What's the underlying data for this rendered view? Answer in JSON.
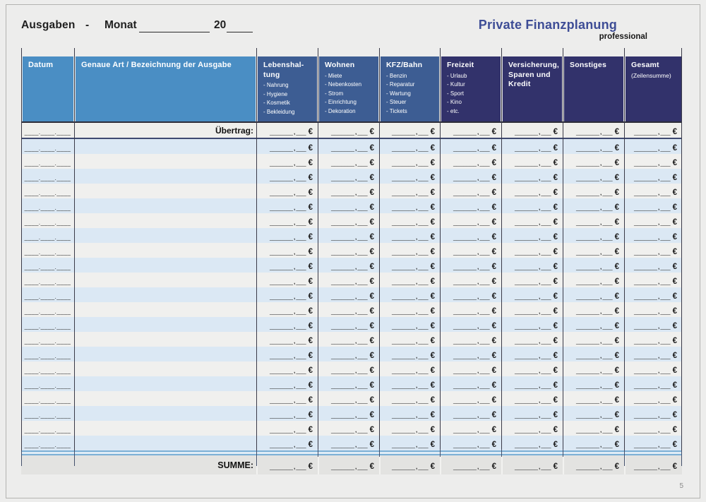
{
  "header": {
    "title": "Ausgaben",
    "separator": "-",
    "month_label": "Monat",
    "year_prefix": "20",
    "brand_title": "Private Finanzplanung",
    "brand_subtitle": "professional"
  },
  "table": {
    "columns": [
      {
        "id": "datum",
        "title_lines": [
          "Datum"
        ],
        "items": []
      },
      {
        "id": "bezeichnung",
        "title_lines": [
          "Genaue Art / Bezeichnung  der Ausgabe"
        ],
        "items": []
      },
      {
        "id": "lebenshaltung",
        "title_lines": [
          "Lebenshal-",
          "tung"
        ],
        "items": [
          "- Nahrung",
          "- Hygiene",
          "- Kosmetik",
          "- Bekleidung"
        ]
      },
      {
        "id": "wohnen",
        "title_lines": [
          "Wohnen"
        ],
        "items": [
          "- Miete",
          "- Nebenkosten",
          "- Strom",
          "- Einrichtung",
          "- Dekoration"
        ]
      },
      {
        "id": "kfz-bahn",
        "title_lines": [
          "KFZ/Bahn"
        ],
        "items": [
          "- Benzin",
          "- Reparatur",
          "- Wartung",
          "- Steuer",
          "- Tickets"
        ]
      },
      {
        "id": "freizeit",
        "title_lines": [
          "Freizeit"
        ],
        "items": [
          "- Urlaub",
          "- Kultur",
          "- Sport",
          "- Kino",
          "- etc."
        ]
      },
      {
        "id": "versicherung",
        "title_lines": [
          "Versicherung,",
          "Sparen und",
          "Kredit"
        ],
        "items": []
      },
      {
        "id": "sonstiges",
        "title_lines": [
          "Sonstiges"
        ],
        "items": []
      },
      {
        "id": "gesamt",
        "title_lines": [
          "Gesamt"
        ],
        "subtitle": "(Zeilensumme)",
        "items": []
      }
    ],
    "uebertrag_label": "Übertrag:",
    "summe_label": "SUMME:",
    "date_placeholder": "____.____.____",
    "amount_placeholder_main": "_______",
    "amount_separator": ",",
    "amount_placeholder_decimal": "___",
    "currency_symbol": "€",
    "data_row_count": 21
  },
  "footer": {
    "page_number": "5"
  },
  "colors": {
    "header_light_blue": "#4a8ec4",
    "header_medium_blue": "#3d5d93",
    "header_dark_navy": "#32326b",
    "row_stripe_blue": "#dbe8f4",
    "row_stripe_light": "#f0f0ee",
    "summe_row_grey": "#e3e3e1",
    "separator_blue": "#7cb0d5",
    "brand_blue": "#3e4d96"
  }
}
